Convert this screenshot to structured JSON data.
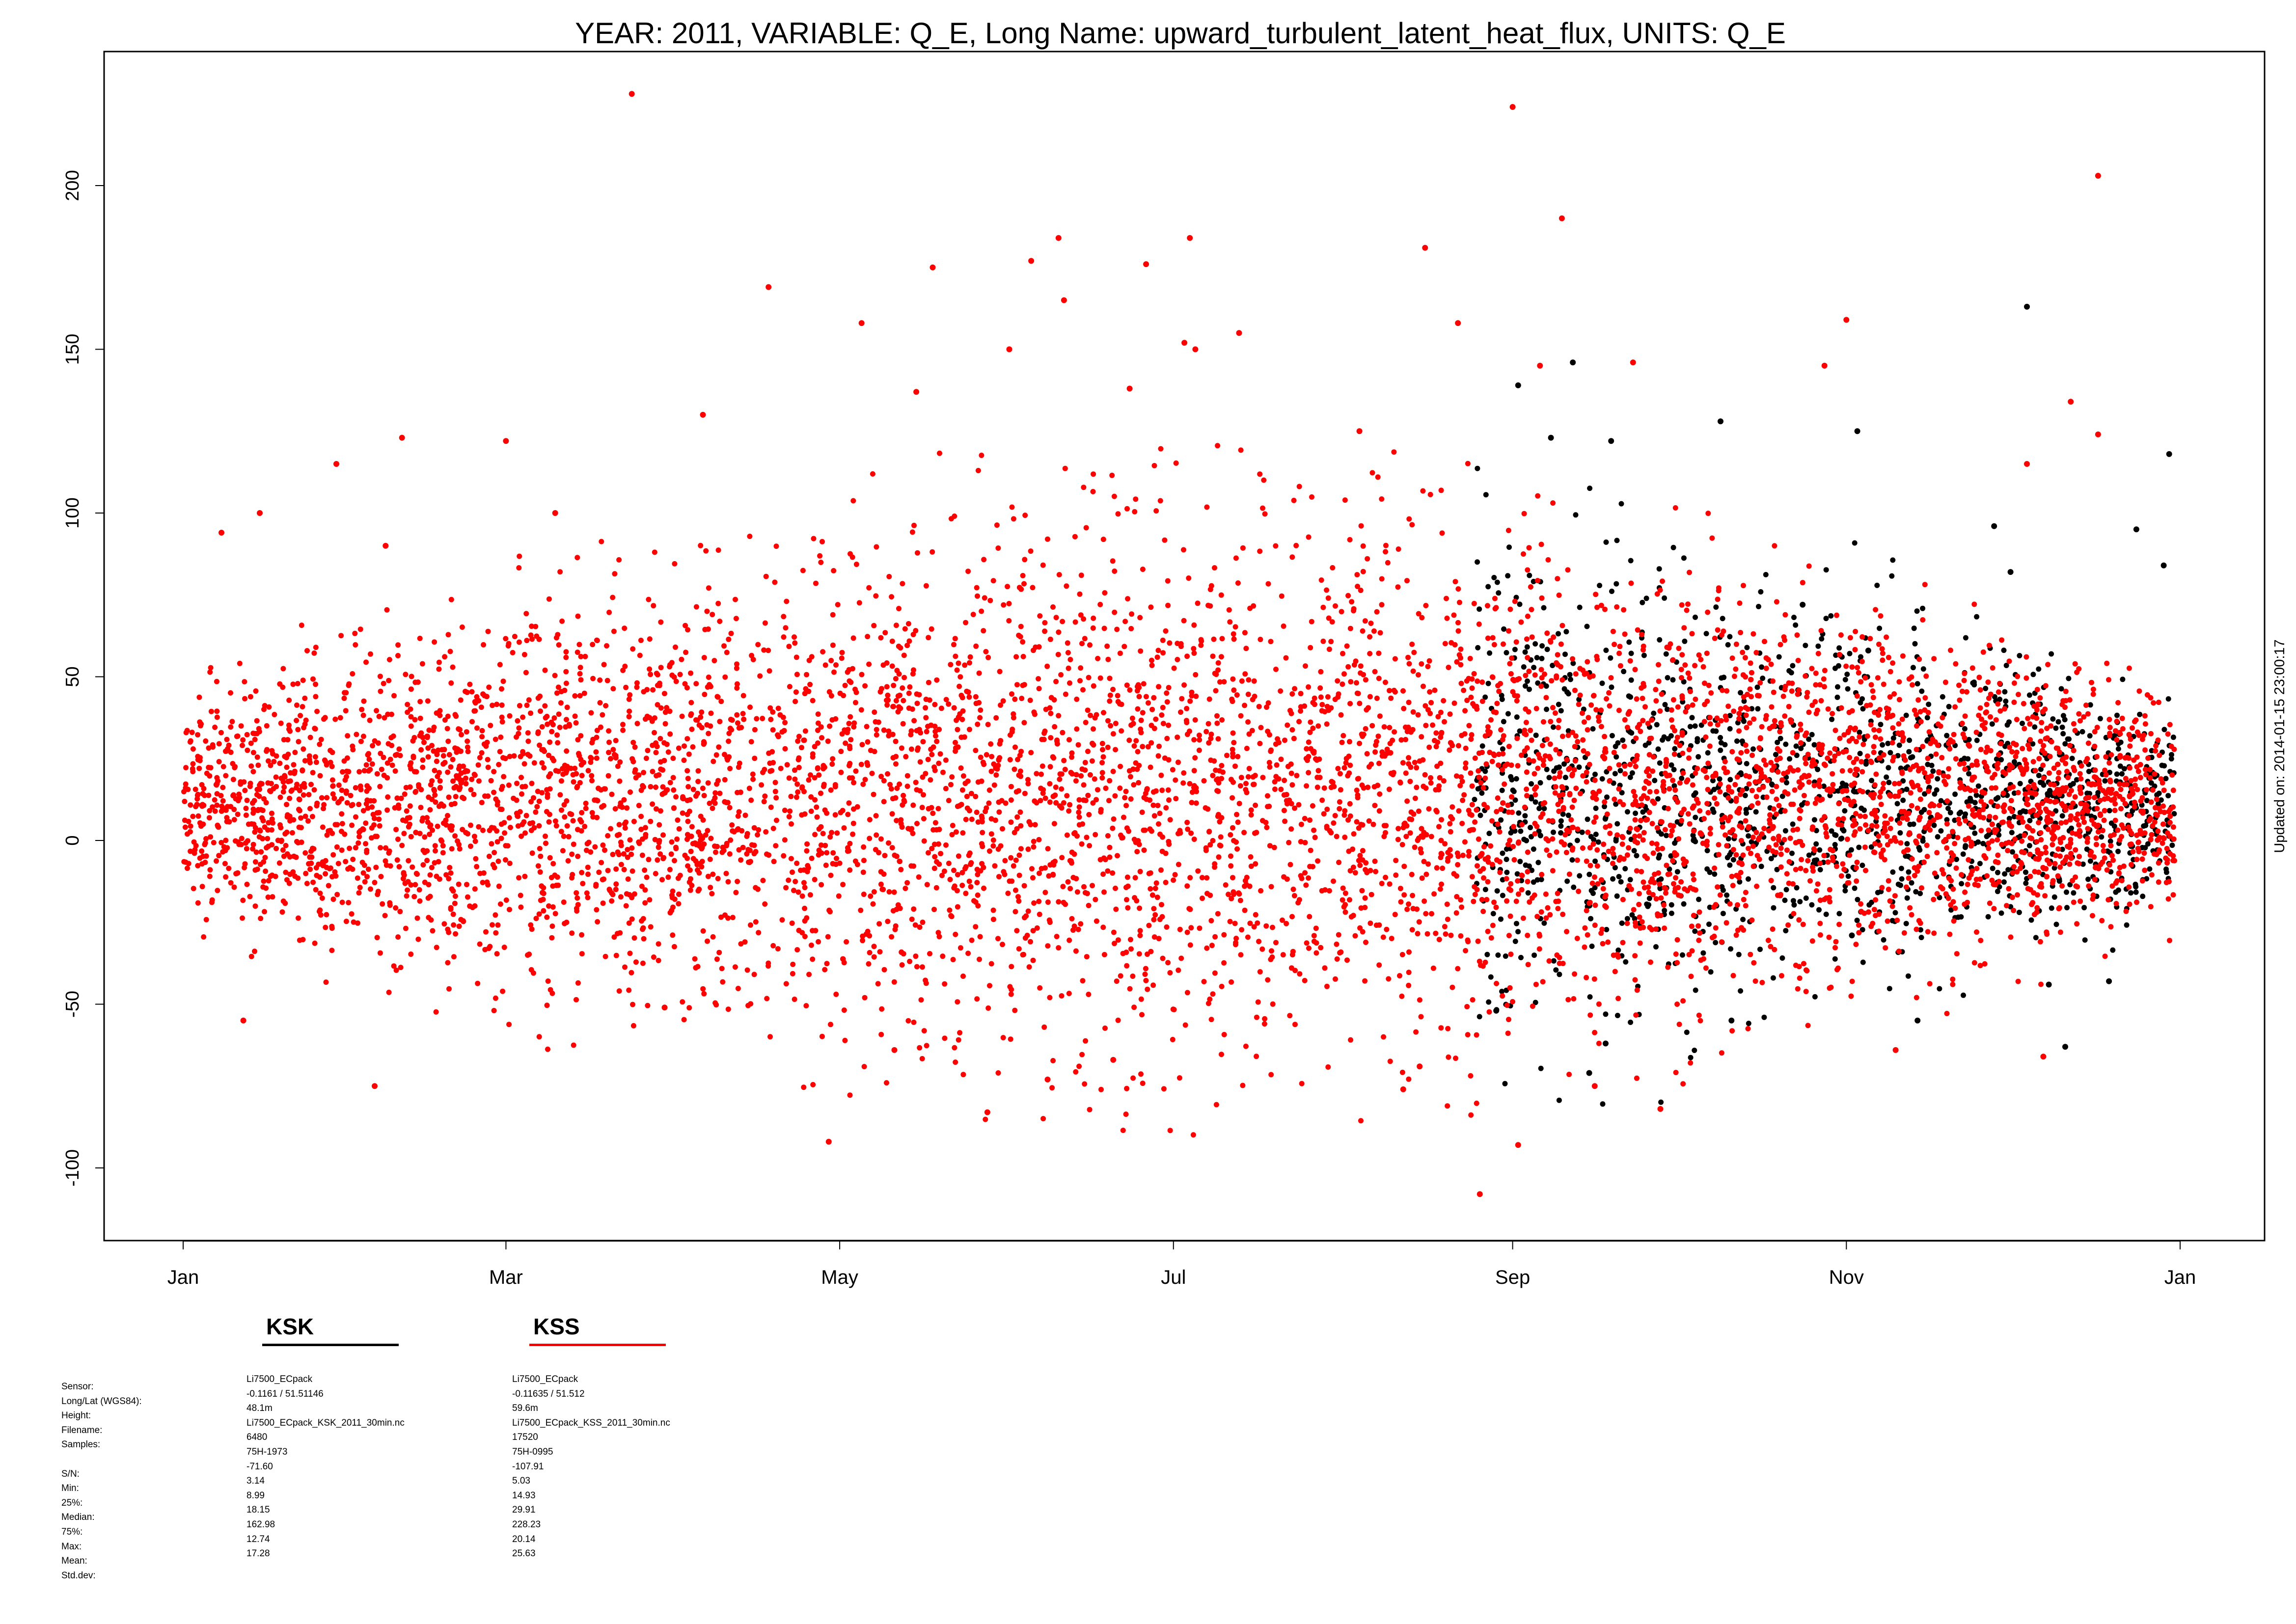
{
  "chart_data": {
    "type": "scatter",
    "title": "YEAR: 2011, VARIABLE: Q_E, Long Name: upward_turbulent_latent_heat_flux, UNITS: Q_E",
    "xlabel": "",
    "ylabel": "",
    "updated": "Updated on: 2014-01-15 23:00:17",
    "xlim": [
      "2011-01-01",
      "2012-01-01"
    ],
    "ylim": [
      -121,
      241
    ],
    "x_ticks": [
      "Jan",
      "Mar",
      "May",
      "Jul",
      "Sep",
      "Nov",
      "Jan"
    ],
    "x_tick_dates": [
      "2011-01-01",
      "2011-03-01",
      "2011-05-01",
      "2011-07-01",
      "2011-09-01",
      "2011-11-01",
      "2012-01-01"
    ],
    "y_ticks": [
      "-100",
      "-50",
      "0",
      "50",
      "100",
      "150",
      "200"
    ],
    "y_tick_values": [
      -100,
      -50,
      0,
      50,
      100,
      150,
      200
    ],
    "grid": false,
    "legend_position": "bottom-left",
    "series": [
      {
        "name": "KSK",
        "color": "#000000",
        "x_range": [
          "2011-08-25",
          "2011-12-31"
        ],
        "points": [
          [
            "2011-09-02",
            139
          ],
          [
            "2011-09-12",
            146
          ],
          [
            "2011-09-19",
            122
          ],
          [
            "2011-10-09",
            128
          ],
          [
            "2011-11-03",
            125
          ],
          [
            "2011-12-04",
            163
          ],
          [
            "2011-12-30",
            118
          ],
          [
            "2011-12-24",
            95
          ],
          [
            "2011-11-28",
            96
          ],
          [
            "2011-09-15",
            -71
          ],
          [
            "2011-09-18",
            -62
          ],
          [
            "2011-11-14",
            -55
          ],
          [
            "2011-12-11",
            -63
          ],
          [
            "2011-12-08",
            -44
          ],
          [
            "2011-12-19",
            -43
          ],
          [
            "2011-10-11",
            -55
          ],
          [
            "2011-08-29",
            -52
          ],
          [
            "2011-11-02",
            -29
          ],
          [
            "2011-09-08",
            123
          ],
          [
            "2011-10-24",
            72
          ],
          [
            "2011-11-05",
            58
          ],
          [
            "2011-12-01",
            82
          ],
          [
            "2011-12-29",
            84
          ]
        ]
      },
      {
        "name": "KSS",
        "color": "#ff0000",
        "x_range": [
          "2011-01-01",
          "2011-12-31"
        ],
        "points": [
          [
            "2011-03-24",
            228
          ],
          [
            "2011-09-01",
            224
          ],
          [
            "2011-12-17",
            203
          ],
          [
            "2011-09-10",
            190
          ],
          [
            "2011-06-10",
            184
          ],
          [
            "2011-07-04",
            184
          ],
          [
            "2011-06-05",
            177
          ],
          [
            "2011-06-26",
            176
          ],
          [
            "2011-05-18",
            175
          ],
          [
            "2011-08-16",
            181
          ],
          [
            "2011-04-18",
            169
          ],
          [
            "2011-06-11",
            165
          ],
          [
            "2011-11-01",
            159
          ],
          [
            "2011-05-05",
            158
          ],
          [
            "2011-08-22",
            158
          ],
          [
            "2011-02-10",
            123
          ],
          [
            "2011-03-01",
            122
          ],
          [
            "2011-03-10",
            100
          ],
          [
            "2011-01-08",
            94
          ],
          [
            "2011-01-15",
            100
          ],
          [
            "2011-07-05",
            150
          ],
          [
            "2011-07-13",
            155
          ],
          [
            "2011-06-01",
            150
          ],
          [
            "2011-09-06",
            145
          ],
          [
            "2011-09-23",
            146
          ],
          [
            "2011-10-28",
            145
          ],
          [
            "2011-12-04",
            115
          ],
          [
            "2011-12-12",
            134
          ],
          [
            "2011-02-07",
            90
          ],
          [
            "2011-04-06",
            130
          ],
          [
            "2011-05-15",
            137
          ],
          [
            "2011-12-17",
            124
          ],
          [
            "2011-01-29",
            115
          ],
          [
            "2011-06-23",
            138
          ],
          [
            "2011-07-03",
            152
          ],
          [
            "2011-08-04",
            125
          ],
          [
            "2011-03-30",
            -51
          ],
          [
            "2011-04-29",
            -92
          ],
          [
            "2011-05-28",
            -83
          ],
          [
            "2011-06-08",
            -73
          ],
          [
            "2011-08-26",
            -108
          ],
          [
            "2011-09-02",
            -93
          ],
          [
            "2011-09-28",
            -82
          ],
          [
            "2011-08-12",
            -76
          ],
          [
            "2011-09-16",
            -75
          ],
          [
            "2011-02-05",
            -75
          ],
          [
            "2011-12-07",
            -66
          ],
          [
            "2011-11-10",
            -64
          ],
          [
            "2011-01-12",
            -55
          ],
          [
            "2011-05-11",
            -64
          ],
          [
            "2011-06-20",
            -67
          ],
          [
            "2011-08-15",
            -69
          ]
        ]
      }
    ]
  },
  "legend": {
    "ksk": "KSK",
    "kss": "KSS"
  },
  "meta_labels": [
    "Sensor:",
    "Long/Lat (WGS84):",
    "Height:",
    "Filename:",
    "Samples:",
    "",
    "S/N:",
    "Min:",
    "25%:",
    "Median:",
    "75%:",
    "Max:",
    "Mean:",
    "Std.dev:"
  ],
  "meta_ksk": [
    "Li7500_ECpack",
    " -0.1161 / 51.51146",
    "48.1m",
    "Li7500_ECpack_KSK_2011_30min.nc",
    "6480",
    "75H-1973",
    "-71.60",
    "3.14",
    "8.99",
    "18.15",
    "162.98",
    "12.74",
    "17.28"
  ],
  "meta_kss": [
    "Li7500_ECpack",
    " -0.11635 / 51.512",
    "59.6m",
    "Li7500_ECpack_KSS_2011_30min.nc",
    "17520",
    "75H-0995",
    "-107.91",
    "5.03",
    "14.93",
    "29.91",
    "228.23",
    "20.14",
    "25.63"
  ]
}
